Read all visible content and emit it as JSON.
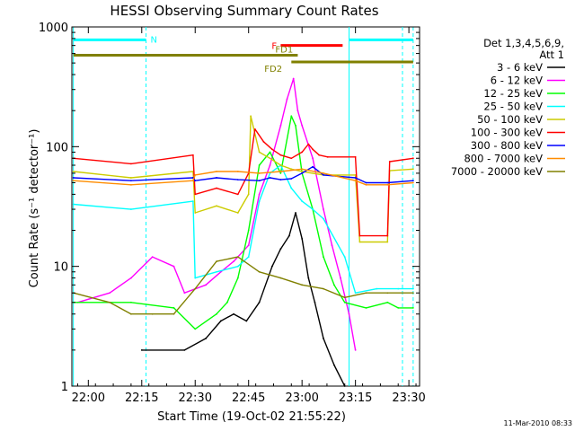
{
  "chart_data": {
    "type": "line",
    "title": "HESSI Observing Summary Count Rates",
    "xlabel": "Start Time (19-Oct-02 21:55:22)",
    "ylabel": "Count Rate (s⁻¹ detector⁻¹)",
    "xlim": [
      21.923,
      23.55
    ],
    "ylim": [
      1,
      1000
    ],
    "yscale": "log",
    "x_ticks": [
      {
        "v": 22.0,
        "label": "22:00"
      },
      {
        "v": 22.25,
        "label": "22:15"
      },
      {
        "v": 22.5,
        "label": "22:30"
      },
      {
        "v": 22.75,
        "label": "22:45"
      },
      {
        "v": 23.0,
        "label": "23:00"
      },
      {
        "v": 23.25,
        "label": "23:15"
      },
      {
        "v": 23.5,
        "label": "23:30"
      }
    ],
    "y_ticks": [
      {
        "v": 1,
        "label": "1"
      },
      {
        "v": 10,
        "label": "10"
      },
      {
        "v": 100,
        "label": "100"
      },
      {
        "v": 1000,
        "label": "1000"
      }
    ],
    "legend_header": [
      "Det 1,3,4,5,6,9,",
      "Att 1"
    ],
    "legend_position": "right",
    "series": [
      {
        "name": "3 - 6 keV",
        "color": "#000000",
        "x": [
          22.25,
          22.45,
          22.55,
          22.62,
          22.68,
          22.74,
          22.8,
          22.86,
          22.9,
          22.94,
          22.97,
          23.0,
          23.03,
          23.06,
          23.1,
          23.15,
          23.2
        ],
        "y": [
          2.0,
          2.0,
          2.5,
          3.5,
          4.0,
          3.5,
          5.0,
          10.0,
          14.0,
          18.0,
          28.0,
          17.0,
          8.0,
          5.0,
          2.5,
          1.5,
          1.0
        ]
      },
      {
        "name": "6 - 12 keV",
        "color": "#ff00ff",
        "x": [
          21.95,
          22.1,
          22.2,
          22.3,
          22.4,
          22.45,
          22.55,
          22.62,
          22.68,
          22.75,
          22.8,
          22.85,
          22.9,
          22.93,
          22.96,
          22.98,
          23.0,
          23.05,
          23.1,
          23.14,
          23.18,
          23.22,
          23.25
        ],
        "y": [
          5.0,
          6.0,
          8.0,
          12.0,
          10.0,
          6.0,
          7.0,
          9.0,
          11.0,
          15.0,
          40.0,
          70.0,
          150.0,
          250.0,
          370.0,
          200.0,
          150.0,
          80.0,
          30.0,
          15.0,
          8.0,
          4.0,
          2.0
        ]
      },
      {
        "name": "12 - 25 keV",
        "color": "#00ff00",
        "x": [
          21.93,
          22.2,
          22.4,
          22.5,
          22.6,
          22.65,
          22.7,
          22.75,
          22.8,
          22.85,
          22.9,
          22.95,
          22.97,
          23.0,
          23.05,
          23.1,
          23.15,
          23.2,
          23.3,
          23.4,
          23.45,
          23.52
        ],
        "y": [
          5.0,
          5.0,
          4.5,
          3.0,
          4.0,
          5.0,
          8.0,
          20.0,
          70.0,
          90.0,
          60.0,
          180.0,
          150.0,
          60.0,
          30.0,
          12.0,
          7.0,
          5.0,
          4.5,
          5.0,
          4.5,
          4.5
        ]
      },
      {
        "name": "25 - 50 keV",
        "color": "#00ffff",
        "x": [
          21.93,
          22.2,
          22.49,
          22.5,
          22.6,
          22.7,
          22.75,
          22.8,
          22.85,
          22.9,
          22.95,
          23.0,
          23.05,
          23.1,
          23.2,
          23.25,
          23.35,
          23.45,
          23.52
        ],
        "y": [
          33.0,
          30.0,
          35.0,
          8.0,
          9.0,
          10.0,
          12.0,
          35.0,
          60.0,
          70.0,
          45.0,
          35.0,
          30.0,
          25.0,
          12.0,
          6.0,
          6.5,
          6.5,
          6.5
        ]
      },
      {
        "name": "50 - 100 keV",
        "color": "#cccc00",
        "x": [
          21.93,
          22.2,
          22.49,
          22.5,
          22.6,
          22.7,
          22.75,
          22.76,
          22.8,
          22.85,
          22.9,
          22.95,
          23.0,
          23.1,
          23.25,
          23.27,
          23.4,
          23.41,
          23.52
        ],
        "y": [
          62.0,
          55.0,
          62.0,
          28.0,
          32.0,
          28.0,
          40.0,
          180.0,
          90.0,
          80.0,
          70.0,
          65.0,
          62.0,
          58.0,
          58.0,
          16.0,
          16.0,
          63.0,
          65.0
        ]
      },
      {
        "name": "100 - 300 keV",
        "color": "#ff0000",
        "x": [
          21.93,
          22.2,
          22.49,
          22.5,
          22.6,
          22.7,
          22.75,
          22.78,
          22.82,
          22.86,
          22.9,
          22.95,
          23.0,
          23.03,
          23.05,
          23.08,
          23.12,
          23.25,
          23.27,
          23.4,
          23.41,
          23.52
        ],
        "y": [
          80.0,
          72.0,
          85.0,
          40.0,
          45.0,
          40.0,
          60.0,
          140.0,
          110.0,
          95.0,
          85.0,
          80.0,
          90.0,
          105.0,
          95.0,
          85.0,
          82.0,
          82.0,
          18.0,
          18.0,
          75.0,
          80.0
        ]
      },
      {
        "name": "300 - 800 keV",
        "color": "#0000ff",
        "x": [
          21.93,
          22.2,
          22.49,
          22.5,
          22.6,
          22.7,
          22.8,
          22.85,
          22.9,
          22.95,
          23.0,
          23.05,
          23.1,
          23.25,
          23.3,
          23.4,
          23.52
        ],
        "y": [
          55.0,
          52.0,
          55.0,
          52.0,
          55.0,
          53.0,
          52.0,
          55.0,
          53.0,
          54.0,
          60.0,
          68.0,
          58.0,
          55.0,
          50.0,
          50.0,
          52.0
        ]
      },
      {
        "name": "800 - 7000 keV",
        "color": "#ff8c00",
        "x": [
          21.93,
          22.2,
          22.49,
          22.5,
          22.6,
          22.7,
          22.8,
          22.9,
          23.0,
          23.1,
          23.25,
          23.3,
          23.4,
          23.52
        ],
        "y": [
          52.0,
          48.0,
          52.0,
          58.0,
          62.0,
          62.0,
          60.0,
          62.0,
          65.0,
          60.0,
          52.0,
          48.0,
          48.0,
          50.0
        ]
      },
      {
        "name": "7000 - 20000 keV",
        "color": "#808000",
        "x": [
          21.93,
          22.1,
          22.2,
          22.3,
          22.4,
          22.5,
          22.6,
          22.7,
          22.8,
          22.9,
          23.0,
          23.1,
          23.2,
          23.3,
          23.4,
          23.52
        ],
        "y": [
          6.0,
          5.0,
          4.0,
          4.0,
          4.0,
          6.5,
          11.0,
          12.0,
          9.0,
          8.0,
          7.0,
          6.5,
          5.5,
          6.0,
          6.0,
          6.0
        ]
      }
    ],
    "vertical_lines": [
      {
        "x": 21.93,
        "color": "#00ffff",
        "style": "solid"
      },
      {
        "x": 22.27,
        "color": "#00ffff",
        "style": "dashed"
      },
      {
        "x": 23.22,
        "color": "#00ffff",
        "style": "solid"
      },
      {
        "x": 23.47,
        "color": "#00ffff",
        "style": "dashed"
      },
      {
        "x": 23.52,
        "color": "#00ffff",
        "style": "dashed"
      }
    ],
    "flags": [
      {
        "label": "N",
        "color": "#00ffff",
        "y": 780,
        "segments": [
          [
            21.93,
            22.27
          ],
          [
            23.22,
            23.52
          ]
        ]
      },
      {
        "label": "F",
        "color": "#ff0000",
        "y": 700,
        "segments": [
          [
            22.9,
            23.19
          ]
        ]
      },
      {
        "label": "FD1",
        "color": "#808000",
        "y": 580,
        "segments": [
          [
            21.93,
            22.98
          ]
        ]
      },
      {
        "label": "FD2",
        "color": "#808000",
        "y": 510,
        "segments": [
          [
            22.95,
            23.52
          ]
        ]
      }
    ],
    "timestamp": "11-Mar-2010 08:33"
  }
}
